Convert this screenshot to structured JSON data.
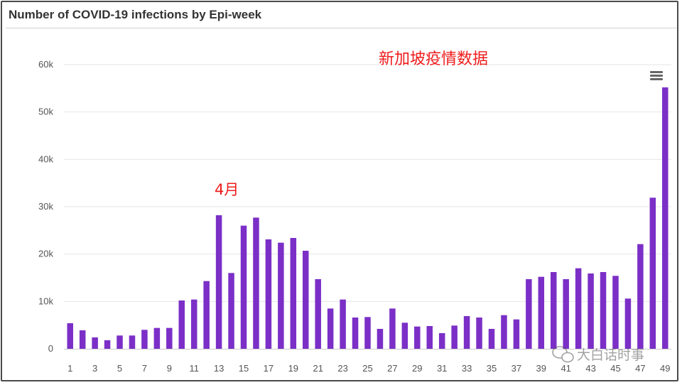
{
  "chart_data": {
    "type": "bar",
    "title": "Number of COVID-19 infections by Epi-week",
    "xlabel": "",
    "ylabel": "",
    "ylim": [
      0,
      60000
    ],
    "yticks": [
      0,
      10000,
      20000,
      30000,
      40000,
      50000,
      60000
    ],
    "ytick_labels": [
      "0",
      "10k",
      "20k",
      "30k",
      "40k",
      "50k",
      "60k"
    ],
    "xtick_labels": [
      "1",
      "3",
      "5",
      "7",
      "9",
      "11",
      "13",
      "15",
      "17",
      "19",
      "21",
      "23",
      "25",
      "27",
      "29",
      "31",
      "33",
      "35",
      "37",
      "39",
      "41",
      "43",
      "45",
      "47",
      "49"
    ],
    "grid": true,
    "bar_color": "#7b2fc7",
    "categories": [
      1,
      2,
      3,
      4,
      5,
      6,
      7,
      8,
      9,
      10,
      11,
      12,
      13,
      14,
      15,
      16,
      17,
      18,
      19,
      20,
      21,
      22,
      23,
      24,
      25,
      26,
      27,
      28,
      29,
      30,
      31,
      32,
      33,
      34,
      35,
      36,
      37,
      38,
      39,
      40,
      41,
      42,
      43,
      44,
      45,
      46,
      47,
      48,
      49
    ],
    "values": [
      5400,
      3900,
      2400,
      1800,
      2800,
      2800,
      4000,
      4400,
      4400,
      10200,
      10400,
      14300,
      28200,
      16000,
      26000,
      27700,
      23100,
      22400,
      23400,
      20700,
      14700,
      8500,
      10400,
      6600,
      6700,
      4200,
      8500,
      5500,
      4700,
      4800,
      3300,
      4900,
      6900,
      6600,
      4200,
      7100,
      6200,
      14700,
      15200,
      16200,
      14700,
      17000,
      15900,
      16200,
      15400,
      10600,
      22100,
      31900,
      55200
    ],
    "annotations": [
      {
        "text": "新加坡疫情数据",
        "color": "#ee1c1c"
      },
      {
        "text": "4月",
        "color": "#ee1c1c"
      }
    ],
    "watermark": "大白话时事"
  }
}
